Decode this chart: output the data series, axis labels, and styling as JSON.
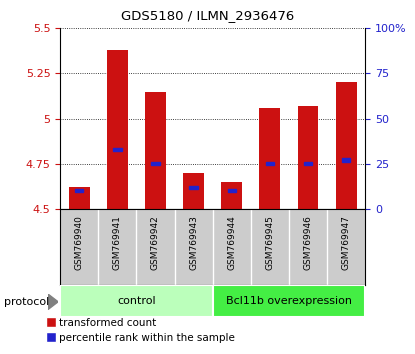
{
  "title": "GDS5180 / ILMN_2936476",
  "samples": [
    "GSM769940",
    "GSM769941",
    "GSM769942",
    "GSM769943",
    "GSM769944",
    "GSM769945",
    "GSM769946",
    "GSM769947"
  ],
  "red_values": [
    4.62,
    5.38,
    5.15,
    4.7,
    4.65,
    5.06,
    5.07,
    5.2
  ],
  "blue_percentiles": [
    10,
    33,
    25,
    12,
    10,
    25,
    25,
    27
  ],
  "ymin": 4.5,
  "ymax": 5.5,
  "yticks_left": [
    4.5,
    4.75,
    5.0,
    5.25,
    5.5
  ],
  "yticks_right": [
    0,
    25,
    50,
    75,
    100
  ],
  "groups": [
    {
      "label": "control",
      "start": 0,
      "end": 4,
      "color": "#bbffbb"
    },
    {
      "label": "Bcl11b overexpression",
      "start": 4,
      "end": 8,
      "color": "#44ee44"
    }
  ],
  "bar_color": "#cc1111",
  "blue_color": "#2222cc",
  "bar_base": 4.5,
  "tick_color_left": "#cc1111",
  "tick_color_right": "#2222cc",
  "gray_color": "#cccccc",
  "legend_red": "transformed count",
  "legend_blue": "percentile rank within the sample"
}
